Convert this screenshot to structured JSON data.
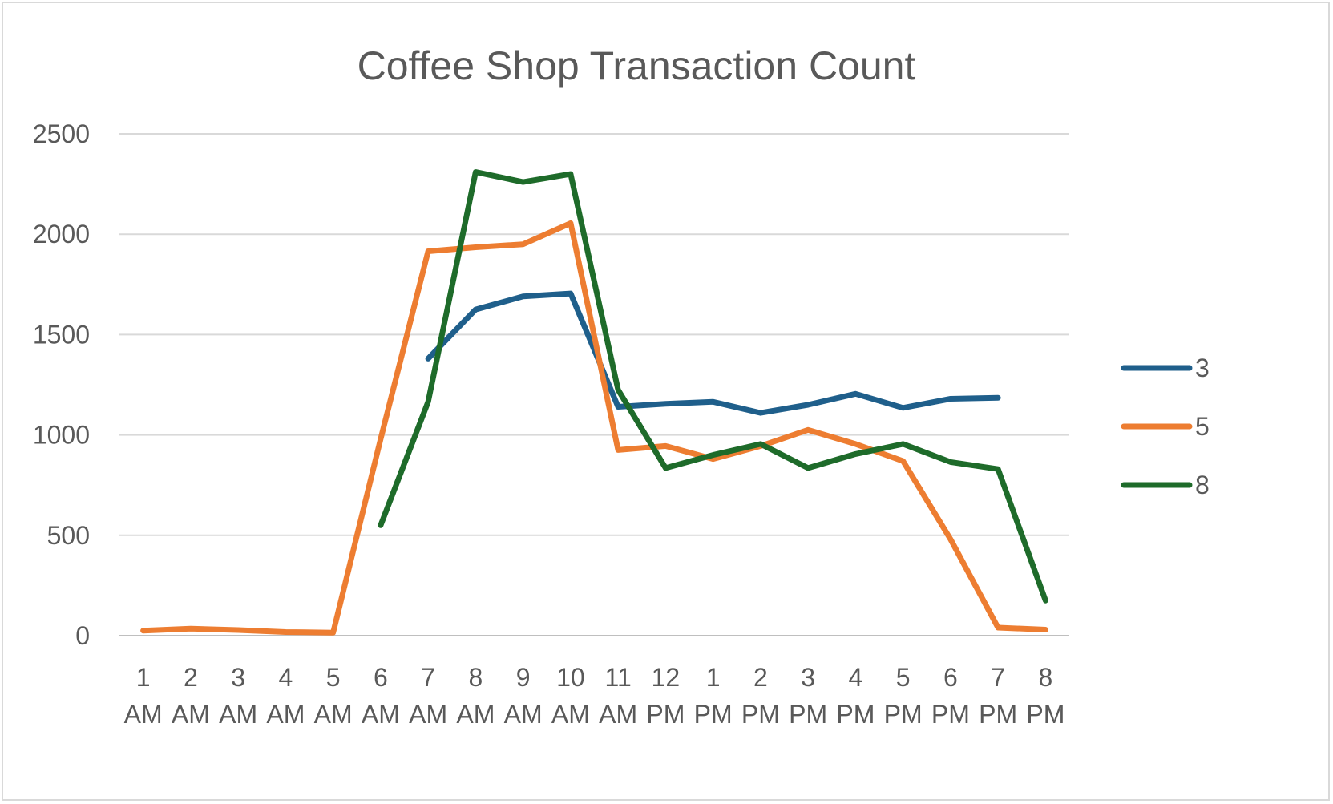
{
  "chart_data": {
    "type": "line",
    "title": "Coffee Shop Transaction Count",
    "xlabel": "",
    "ylabel": "",
    "ylim": [
      0,
      2500
    ],
    "yticks": [
      0,
      500,
      1000,
      1500,
      2000,
      2500
    ],
    "grid": true,
    "legend_position": "right",
    "categories": [
      [
        "1",
        "AM"
      ],
      [
        "2",
        "AM"
      ],
      [
        "3",
        "AM"
      ],
      [
        "4",
        "AM"
      ],
      [
        "5",
        "AM"
      ],
      [
        "6",
        "AM"
      ],
      [
        "7",
        "AM"
      ],
      [
        "8",
        "AM"
      ],
      [
        "9",
        "AM"
      ],
      [
        "10",
        "AM"
      ],
      [
        "11",
        "AM"
      ],
      [
        "12",
        "PM"
      ],
      [
        "1",
        "PM"
      ],
      [
        "2",
        "PM"
      ],
      [
        "3",
        "PM"
      ],
      [
        "4",
        "PM"
      ],
      [
        "5",
        "PM"
      ],
      [
        "6",
        "PM"
      ],
      [
        "7",
        "PM"
      ],
      [
        "8",
        "PM"
      ]
    ],
    "series": [
      {
        "name": "3",
        "color": "#1f5f8b",
        "values": [
          null,
          null,
          null,
          null,
          null,
          null,
          1380,
          1625,
          1690,
          1705,
          1140,
          1155,
          1165,
          1110,
          1150,
          1205,
          1135,
          1180,
          1185,
          null
        ]
      },
      {
        "name": "5",
        "color": "#ed7d31",
        "values": [
          25,
          35,
          28,
          18,
          15,
          980,
          1915,
          1935,
          1950,
          2055,
          925,
          945,
          880,
          945,
          1025,
          955,
          870,
          480,
          40,
          30
        ]
      },
      {
        "name": "8",
        "color": "#1e6b2a",
        "values": [
          null,
          null,
          null,
          null,
          null,
          550,
          1165,
          2310,
          2260,
          2300,
          1225,
          835,
          900,
          955,
          835,
          905,
          955,
          865,
          830,
          175
        ]
      }
    ]
  }
}
